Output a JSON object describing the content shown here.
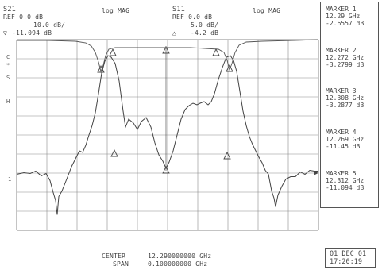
{
  "ch1": {
    "param": "S21",
    "format": "log MAG",
    "ref": "REF  0.0  dB",
    "scale": "10.0 dB/",
    "marker_value": "-11.094 dB"
  },
  "ch2": {
    "param": "S11",
    "format": "log MAG",
    "ref": "REF  0.0  dB",
    "scale": "5.0 dB/",
    "marker_value": "-4.2 dB"
  },
  "left_labels": [
    "C",
    "*",
    "S",
    "H",
    "1"
  ],
  "markers": [
    {
      "name": "MARKER 1",
      "freq": "12.29 GHz",
      "value": "-2.6557 dB"
    },
    {
      "name": "MARKER 2",
      "freq": "12.272 GHz",
      "value": "-3.2799 dB"
    },
    {
      "name": "MARKER 3",
      "freq": "12.308 GHz",
      "value": "-3.2877 dB"
    },
    {
      "name": "MARKER 4",
      "freq": "12.269 GHz",
      "value": "-11.45 dB"
    },
    {
      "name": "MARKER 5",
      "freq": "12.312 GHz",
      "value": "-11.094 dB"
    }
  ],
  "center": {
    "label": "CENTER",
    "value": "12.290000000 GHz"
  },
  "span": {
    "label": "SPAN",
    "value": "0.100000000 GHz"
  },
  "date": "01 DEC 01",
  "time": "17:20:19",
  "trace_color": "#444444",
  "grid_color": "#8a8a8a"
}
